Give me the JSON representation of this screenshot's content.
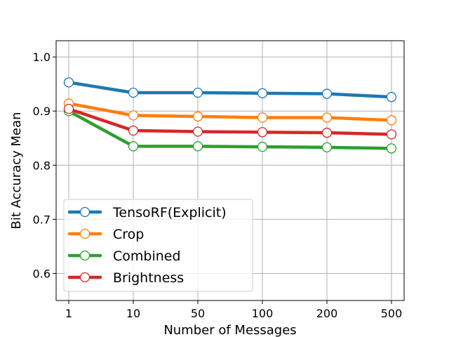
{
  "chart_data": {
    "type": "line",
    "xlabel": "Number of Messages",
    "ylabel": "Bit Accuracy Mean",
    "categories": [
      "1",
      "10",
      "50",
      "100",
      "200",
      "500"
    ],
    "ylim": [
      0.55,
      1.03
    ],
    "yticks": [
      0.6,
      0.7,
      0.8,
      0.9,
      1.0
    ],
    "ytick_labels": [
      "0.6",
      "0.7",
      "0.8",
      "0.9",
      "1.0"
    ],
    "grid": true,
    "legend_position": "lower-left",
    "series": [
      {
        "name": "TensoRF(Explicit)",
        "color": "#1f77b4",
        "values": [
          0.953,
          0.934,
          0.934,
          0.933,
          0.932,
          0.926
        ]
      },
      {
        "name": "Crop",
        "color": "#ff7f0e",
        "values": [
          0.914,
          0.892,
          0.89,
          0.888,
          0.888,
          0.883
        ]
      },
      {
        "name": "Combined",
        "color": "#2ca02c",
        "values": [
          0.9,
          0.835,
          0.835,
          0.834,
          0.833,
          0.831
        ]
      },
      {
        "name": "Brightness",
        "color": "#d62728",
        "values": [
          0.904,
          0.864,
          0.862,
          0.861,
          0.86,
          0.857
        ]
      }
    ]
  }
}
